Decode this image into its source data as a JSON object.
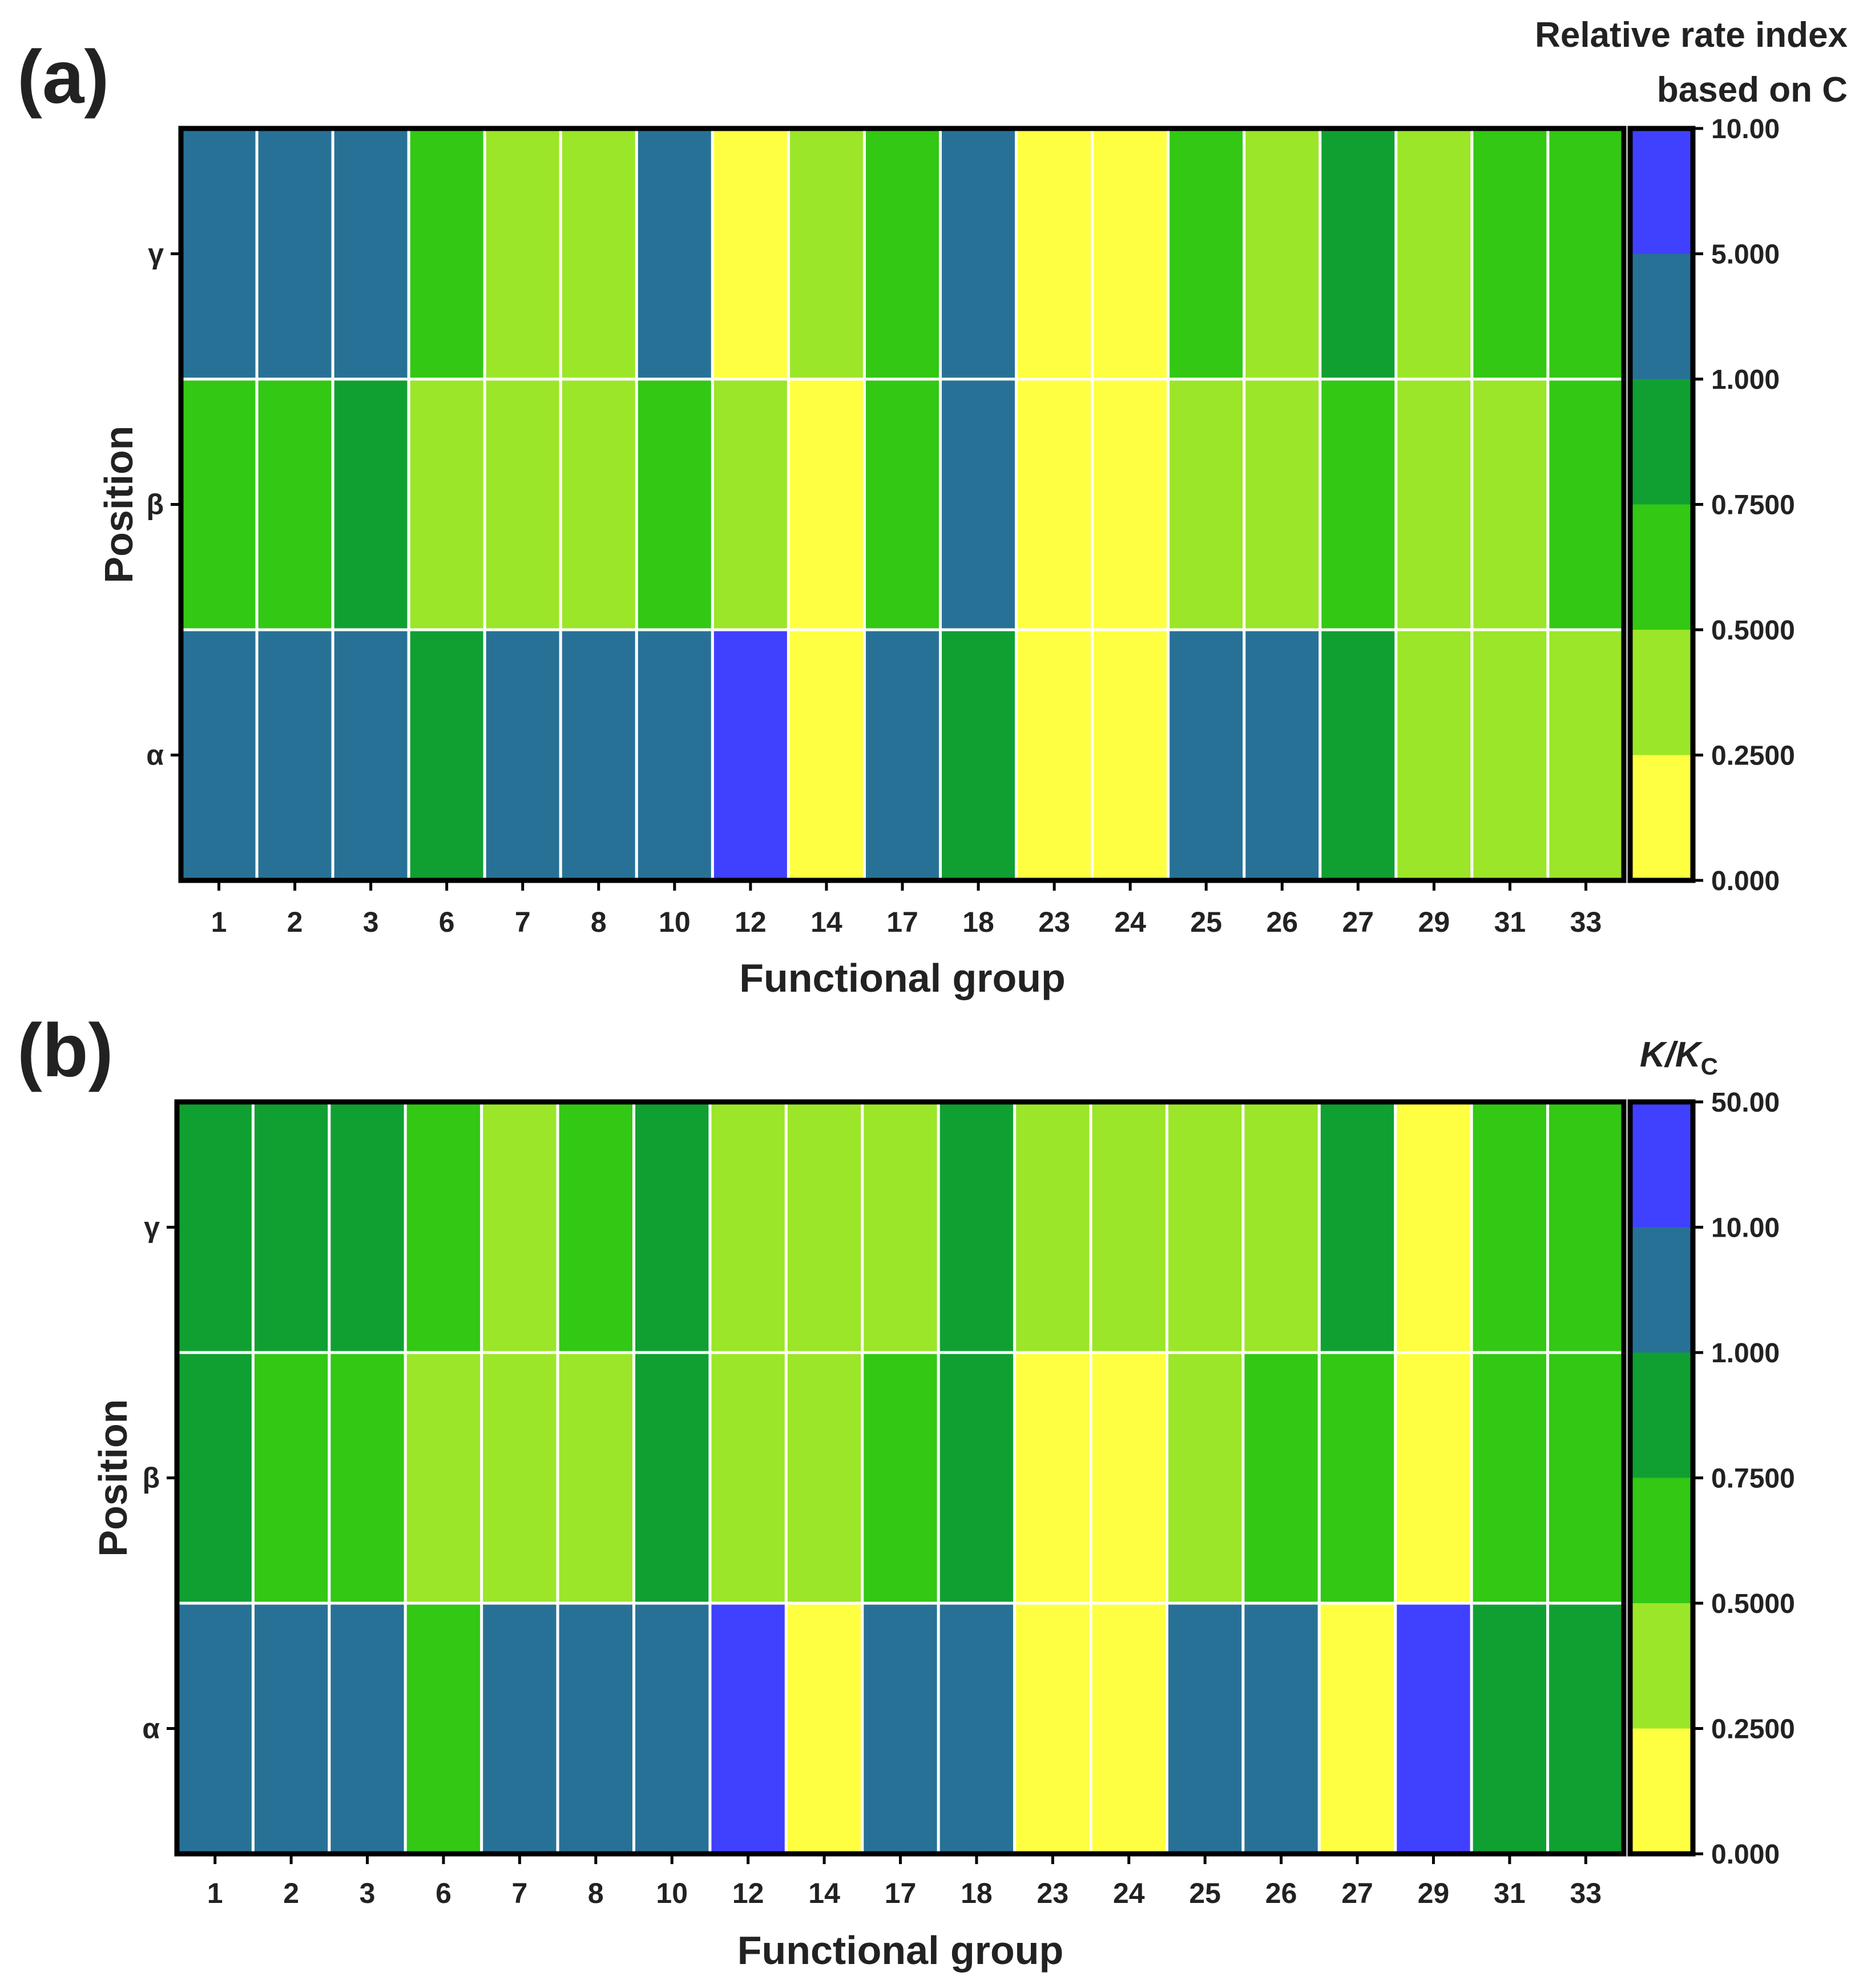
{
  "chart_data": [
    {
      "type": "heatmap",
      "panel_label": "(a)",
      "xlabel": "Functional group",
      "ylabel": "Position",
      "x_categories": [
        "1",
        "2",
        "3",
        "6",
        "7",
        "8",
        "10",
        "12",
        "14",
        "17",
        "18",
        "23",
        "24",
        "25",
        "26",
        "27",
        "29",
        "31",
        "33"
      ],
      "y_categories": [
        "γ",
        "β",
        "α"
      ],
      "colorbar_title_lines": [
        "Relative rate index",
        "based on C"
      ],
      "colorbar_ticks": [
        "10.00",
        "5.000",
        "1.000",
        "0.7500",
        "0.5000",
        "0.2500",
        "0.000"
      ],
      "colorbar_colors": [
        "#4040ff",
        "#287196",
        "#10a032",
        "#32c814",
        "#9be628",
        "#ffff41"
      ],
      "level_ranges": [
        "5.000–10.00",
        "1.000–5.000",
        "0.7500–1.000",
        "0.5000–0.7500",
        "0.2500–0.5000",
        "0.000–0.2500"
      ],
      "cell_levels": [
        [
          1,
          1,
          1,
          3,
          4,
          4,
          1,
          5,
          4,
          3,
          1,
          5,
          5,
          3,
          4,
          2,
          4,
          3,
          3
        ],
        [
          3,
          3,
          2,
          4,
          4,
          4,
          3,
          4,
          5,
          3,
          1,
          5,
          5,
          4,
          4,
          3,
          4,
          4,
          3
        ],
        [
          1,
          1,
          1,
          2,
          1,
          1,
          1,
          0,
          5,
          1,
          2,
          5,
          5,
          1,
          1,
          2,
          4,
          4,
          4
        ]
      ]
    },
    {
      "type": "heatmap",
      "panel_label": "(b)",
      "xlabel": "Functional group",
      "ylabel": "Position",
      "x_categories": [
        "1",
        "2",
        "3",
        "6",
        "7",
        "8",
        "10",
        "12",
        "14",
        "17",
        "18",
        "23",
        "24",
        "25",
        "26",
        "27",
        "29",
        "31",
        "33"
      ],
      "y_categories": [
        "γ",
        "β",
        "α"
      ],
      "colorbar_title_lines": [
        "K/K",
        "C"
      ],
      "colorbar_ticks": [
        "50.00",
        "10.00",
        "1.000",
        "0.7500",
        "0.5000",
        "0.2500",
        "0.000"
      ],
      "colorbar_colors": [
        "#4040ff",
        "#287196",
        "#10a032",
        "#32c814",
        "#9be628",
        "#ffff41"
      ],
      "level_ranges": [
        "10.00–50.00",
        "1.000–10.00",
        "0.7500–1.000",
        "0.5000–0.7500",
        "0.2500–0.5000",
        "0.000–0.2500"
      ],
      "cell_levels": [
        [
          2,
          2,
          2,
          3,
          4,
          3,
          2,
          4,
          4,
          4,
          2,
          4,
          4,
          4,
          4,
          2,
          5,
          3,
          3
        ],
        [
          2,
          3,
          3,
          4,
          4,
          4,
          2,
          4,
          4,
          3,
          2,
          5,
          5,
          4,
          3,
          3,
          5,
          3,
          3
        ],
        [
          1,
          1,
          1,
          3,
          1,
          1,
          1,
          0,
          5,
          1,
          1,
          5,
          5,
          1,
          1,
          5,
          0,
          2,
          2
        ]
      ]
    }
  ]
}
